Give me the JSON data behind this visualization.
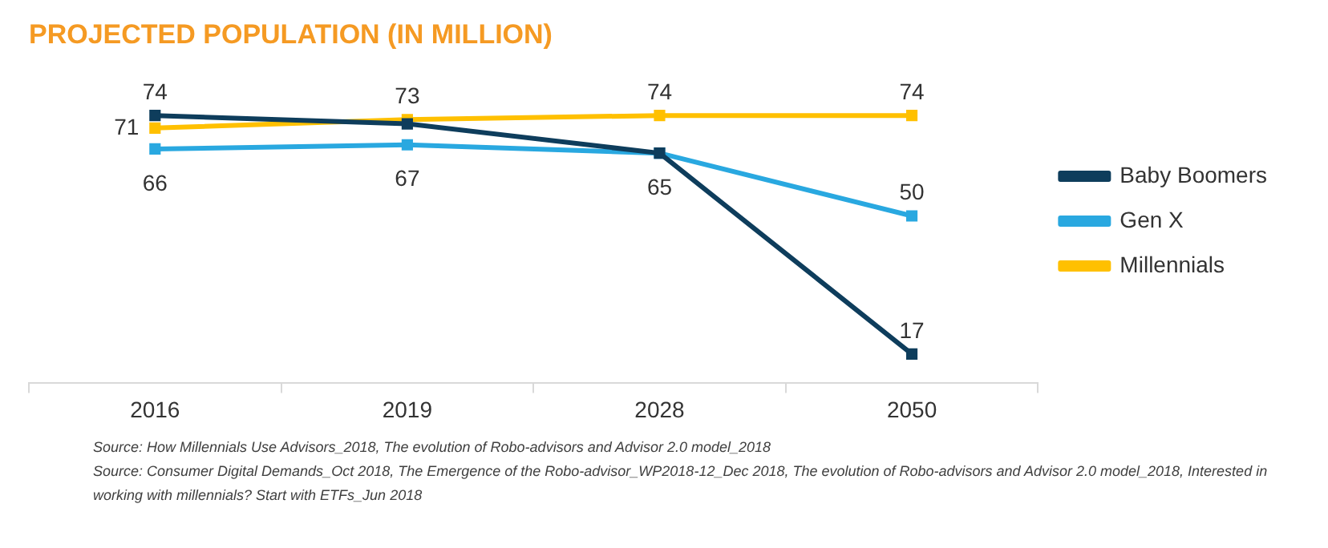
{
  "chart_data": {
    "type": "line",
    "title": "PROJECTED POPULATION (IN MILLION)",
    "categories": [
      "2016",
      "2019",
      "2028",
      "2050"
    ],
    "series": [
      {
        "name": "Baby Boomers",
        "color": "#0e3d5c",
        "values": [
          74,
          72,
          65,
          17
        ],
        "value_labels": [
          "74",
          null,
          null,
          "17"
        ]
      },
      {
        "name": "Gen X",
        "color": "#29a8e0",
        "values": [
          66,
          67,
          65,
          50
        ],
        "value_labels": [
          "66",
          "67",
          "65",
          "50"
        ]
      },
      {
        "name": "Millennials",
        "color": "#ffc000",
        "values": [
          71,
          73,
          74,
          74
        ],
        "value_labels": [
          "71",
          "73",
          "74",
          "74"
        ]
      }
    ],
    "tick_labels": "x",
    "grid": false,
    "legend": "right",
    "marker": "square",
    "line_style": "solid",
    "annotations": [
      "Source: How Millennials Use Advisors_2018, The evolution of Robo-advisors and Advisor 2.0 model_2018",
      "Source: Consumer Digital Demands_Oct 2018, The Emergence of the Robo-advisor_WP2018-12_Dec 2018, The evolution of Robo-advisors and Advisor 2.0 model_2018, Interested in working with millennials? Start with ETFs_Jun 2018"
    ]
  }
}
